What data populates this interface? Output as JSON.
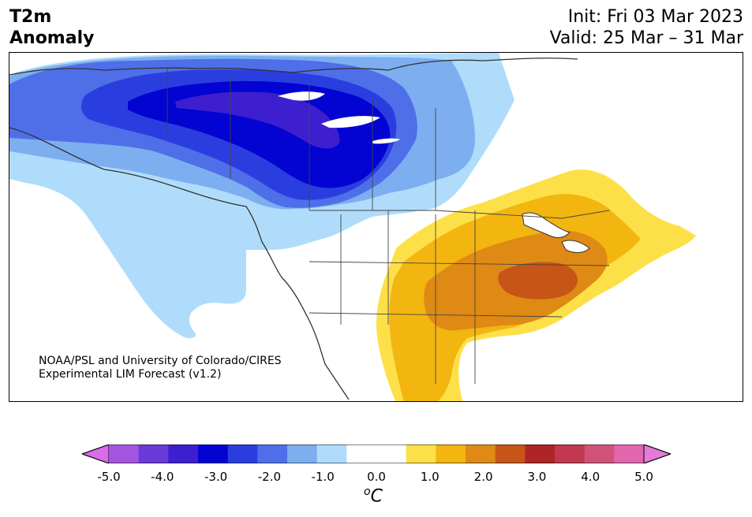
{
  "header": {
    "title_line1": "T2m",
    "title_line2": "Anomaly",
    "init": "Init: Fri 03 Mar 2023",
    "valid": "Valid: 25 Mar – 31 Mar"
  },
  "credit": {
    "line1": "NOAA/PSL and University of Colorado/CIRES",
    "line2": "Experimental LIM Forecast (v1.2)"
  },
  "colorbar": {
    "colors": [
      "#d86be8",
      "#a455df",
      "#6a3ad8",
      "#3d1fcf",
      "#0303d2",
      "#2a3ee0",
      "#4f6fe8",
      "#7daef0",
      "#b0dcfb",
      "#ffffff",
      "#ffffff",
      "#fde047",
      "#f3b510",
      "#df8a14",
      "#c75517",
      "#ad2525",
      "#c0394e",
      "#d0527a",
      "#e067ae",
      "#e57ad8"
    ],
    "ticks": [
      "-5.0",
      "-4.0",
      "-3.0",
      "-2.0",
      "-1.0",
      "0.0",
      "1.0",
      "2.0",
      "3.0",
      "4.0",
      "5.0"
    ],
    "unit_sup": "o",
    "unit": "C"
  }
}
